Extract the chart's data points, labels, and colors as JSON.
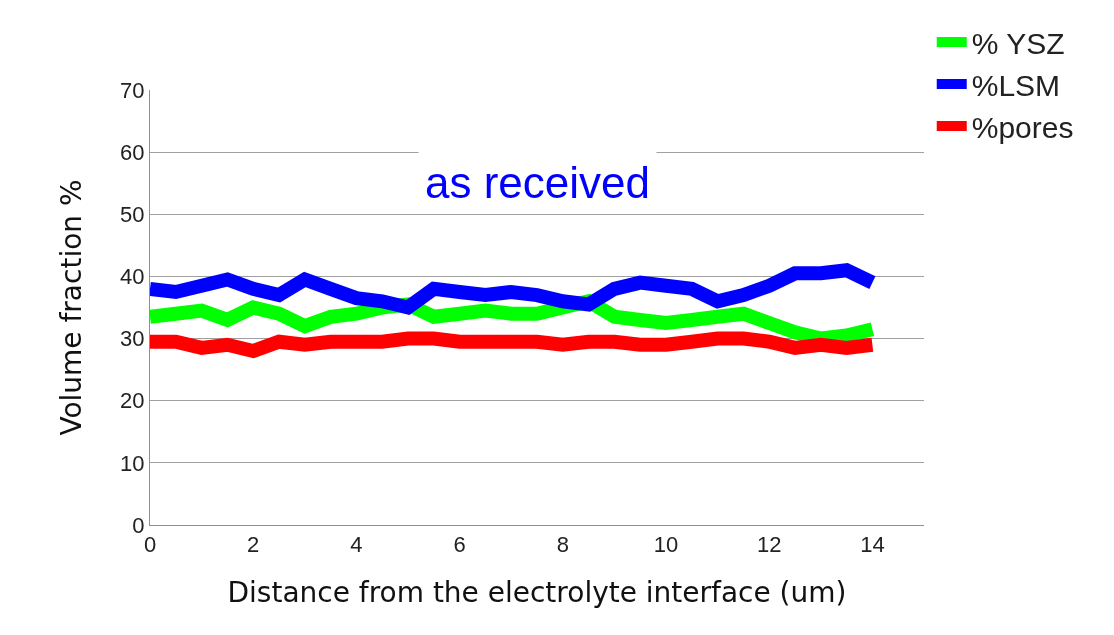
{
  "chart_data": {
    "type": "line",
    "title": "as received",
    "xlabel": "Distance from the electrolyte interface (um)",
    "ylabel": "Volume fraction %",
    "x": [
      0,
      0.5,
      1,
      1.5,
      2,
      2.5,
      3,
      3.5,
      4,
      4.5,
      5,
      5.5,
      6,
      6.5,
      7,
      7.5,
      8,
      8.5,
      9,
      9.5,
      10,
      10.5,
      11,
      11.5,
      12,
      12.5,
      13,
      13.5,
      14
    ],
    "series": [
      {
        "name": "% YSZ",
        "color": "#00ff00",
        "values": [
          33.5,
          34,
          34.5,
          33,
          35,
          34,
          32,
          33.5,
          34,
          35,
          35.5,
          33.5,
          34,
          34.5,
          34,
          34,
          35,
          36,
          33.5,
          33,
          32.5,
          33,
          33.5,
          34,
          32.5,
          31,
          30,
          30.5,
          31.5
        ]
      },
      {
        "name": "%LSM",
        "color": "#0000ff",
        "values": [
          38,
          37.5,
          38.5,
          39.5,
          38,
          37,
          39.5,
          38,
          36.5,
          36,
          35,
          38,
          37.5,
          37,
          37.5,
          37,
          36,
          35.5,
          38,
          39,
          38.5,
          38,
          36,
          37,
          38.5,
          40.5,
          40.5,
          41,
          39
        ]
      },
      {
        "name": "%pores",
        "color": "#ff0000",
        "values": [
          29.5,
          29.5,
          28.5,
          29,
          28,
          29.5,
          29,
          29.5,
          29.5,
          29.5,
          30,
          30,
          29.5,
          29.5,
          29.5,
          29.5,
          29,
          29.5,
          29.5,
          29,
          29,
          29.5,
          30,
          30,
          29.5,
          28.5,
          29,
          28.5,
          29
        ]
      }
    ],
    "xlim": [
      0,
      15
    ],
    "xticks": [
      0,
      2,
      4,
      6,
      8,
      10,
      12,
      14
    ],
    "ylim": [
      0,
      70
    ],
    "yticks": [
      0,
      10,
      20,
      30,
      40,
      50,
      60,
      70
    ],
    "grid": "y",
    "legend": "top right",
    "marker": "none",
    "line_style": "solid"
  }
}
